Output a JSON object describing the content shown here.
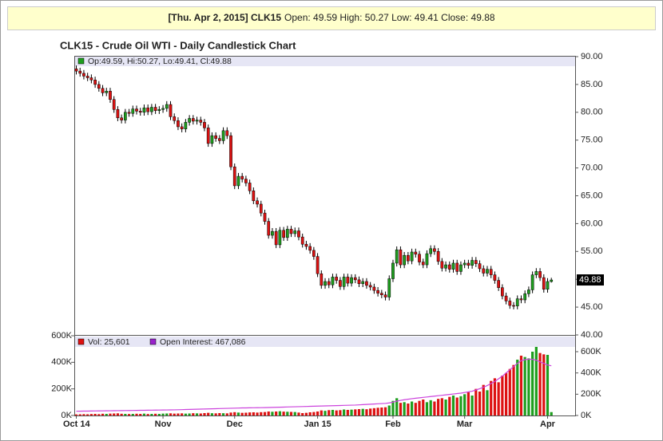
{
  "chart_data": {
    "type": "candlestick",
    "info_bar": {
      "bold": "[Thu. Apr 2, 2015] CLK15",
      "rest": "Open: 49.59 High: 50.27 Low: 49.41 Close: 49.88"
    },
    "title": "CLK15 - Crude Oil WTI - Daily Candlestick Chart",
    "price_legend": "Op:49.59, Hi:50.27, Lo:49.41, Cl:49.88",
    "last_label": "49.88",
    "up_color": "#1e9e1e",
    "down_color": "#dd1111",
    "categories": [
      "Oct 14",
      null,
      null,
      null,
      null,
      null,
      null,
      null,
      null,
      null,
      null,
      null,
      null,
      null,
      null,
      null,
      null,
      null,
      null,
      null,
      null,
      null,
      null,
      "Nov",
      null,
      null,
      null,
      null,
      null,
      null,
      null,
      null,
      null,
      null,
      null,
      null,
      null,
      null,
      null,
      null,
      null,
      null,
      "Dec",
      null,
      null,
      null,
      null,
      null,
      null,
      null,
      null,
      null,
      null,
      null,
      null,
      null,
      null,
      null,
      null,
      null,
      null,
      null,
      null,
      null,
      "Jan 15",
      null,
      null,
      null,
      null,
      null,
      null,
      null,
      null,
      null,
      null,
      null,
      null,
      null,
      null,
      null,
      null,
      null,
      null,
      null,
      "Feb",
      null,
      null,
      null,
      null,
      null,
      null,
      null,
      null,
      null,
      null,
      null,
      null,
      null,
      null,
      null,
      null,
      null,
      null,
      "Mar",
      null,
      null,
      null,
      null,
      null,
      null,
      null,
      null,
      null,
      null,
      null,
      null,
      null,
      null,
      null,
      null,
      null,
      null,
      null,
      null,
      null,
      "Apr",
      null
    ],
    "open": [
      87.8,
      87.4,
      87.0,
      86.5,
      86.2,
      85.8,
      85.0,
      84.3,
      83.5,
      83.8,
      82.3,
      80.5,
      79.0,
      78.6,
      80.0,
      79.8,
      80.6,
      80.2,
      80.0,
      80.8,
      80.1,
      80.9,
      80.3,
      80.5,
      80.7,
      81.4,
      79.2,
      78.5,
      77.4,
      77.0,
      78.2,
      78.9,
      78.4,
      78.6,
      78.2,
      77.2,
      74.4,
      75.8,
      75.3,
      74.9,
      76.7,
      75.8,
      70.2,
      66.8,
      68.5,
      68.0,
      67.3,
      65.9,
      64.1,
      63.5,
      61.9,
      60.4,
      57.9,
      58.6,
      56.2,
      58.8,
      57.5,
      59.0,
      58.2,
      58.7,
      57.6,
      56.3,
      55.9,
      55.2,
      54.1,
      51.0,
      48.9,
      49.6,
      49.0,
      50.4,
      49.8,
      48.7,
      50.4,
      49.3,
      50.3,
      49.9,
      49.2,
      49.6,
      48.9,
      48.6,
      48.0,
      47.5,
      47.2,
      46.8,
      50.1,
      52.9,
      55.3,
      52.6,
      54.3,
      53.3,
      54.9,
      54.5,
      53.1,
      52.6,
      54.6,
      55.5,
      55.0,
      53.2,
      52.0,
      52.6,
      51.8,
      52.9,
      51.4,
      52.6,
      52.9,
      52.5,
      53.4,
      52.8,
      51.9,
      51.1,
      51.8,
      50.8,
      49.8,
      48.5,
      47.0,
      46.1,
      45.3,
      45.2,
      46.5,
      46.3,
      47.4,
      48.1,
      50.8,
      51.4,
      50.3,
      48.2,
      49.59
    ],
    "high": [
      88.4,
      88.0,
      87.6,
      87.1,
      86.8,
      86.4,
      85.6,
      84.9,
      84.4,
      84.4,
      82.9,
      81.1,
      79.6,
      80.6,
      80.6,
      81.2,
      81.2,
      80.8,
      81.4,
      81.4,
      81.5,
      81.5,
      81.1,
      81.3,
      82.0,
      82.0,
      79.8,
      79.1,
      78.0,
      78.8,
      79.5,
      79.5,
      79.2,
      79.2,
      78.8,
      77.8,
      76.4,
      76.4,
      75.9,
      77.3,
      77.3,
      76.4,
      70.8,
      69.1,
      69.1,
      68.6,
      67.9,
      66.5,
      64.7,
      64.1,
      62.5,
      61.0,
      59.2,
      59.2,
      59.4,
      59.4,
      59.6,
      59.6,
      59.3,
      59.3,
      58.2,
      56.9,
      56.5,
      55.8,
      54.7,
      51.6,
      50.2,
      50.2,
      51.0,
      51.0,
      50.4,
      51.0,
      51.0,
      50.9,
      50.9,
      50.5,
      50.2,
      50.2,
      49.5,
      49.2,
      48.6,
      48.1,
      47.8,
      50.7,
      53.5,
      55.9,
      55.9,
      54.9,
      54.9,
      55.5,
      55.5,
      55.1,
      53.7,
      55.2,
      56.1,
      56.1,
      55.6,
      53.8,
      53.2,
      53.2,
      53.5,
      53.5,
      53.2,
      53.5,
      53.5,
      54.0,
      54.0,
      53.4,
      52.5,
      52.4,
      52.4,
      51.4,
      50.4,
      49.1,
      47.6,
      46.7,
      45.9,
      47.1,
      47.1,
      48.0,
      48.7,
      51.4,
      52.0,
      52.0,
      50.9,
      50.2,
      50.27
    ],
    "low": [
      86.8,
      86.4,
      85.9,
      85.6,
      85.2,
      84.4,
      83.7,
      82.9,
      82.9,
      81.7,
      79.9,
      78.4,
      78.0,
      78.0,
      79.2,
      79.2,
      79.6,
      79.4,
      79.4,
      79.5,
      79.5,
      79.7,
      79.7,
      79.9,
      80.1,
      78.6,
      77.9,
      76.8,
      76.4,
      76.4,
      77.6,
      77.8,
      77.8,
      77.6,
      76.6,
      73.8,
      73.8,
      74.7,
      74.3,
      74.3,
      75.2,
      69.6,
      66.2,
      66.2,
      67.4,
      66.7,
      65.3,
      63.5,
      62.9,
      61.3,
      59.8,
      57.3,
      57.3,
      55.6,
      55.6,
      56.9,
      56.9,
      57.6,
      57.6,
      57.0,
      55.7,
      55.3,
      54.6,
      53.5,
      50.4,
      48.3,
      48.3,
      48.4,
      48.4,
      49.2,
      48.1,
      48.1,
      48.7,
      48.7,
      49.3,
      48.6,
      48.6,
      48.3,
      48.0,
      47.4,
      46.9,
      46.6,
      46.2,
      46.2,
      49.5,
      52.3,
      52.0,
      52.0,
      52.7,
      52.7,
      53.9,
      52.5,
      52.0,
      52.0,
      54.0,
      54.4,
      52.6,
      51.4,
      51.4,
      51.2,
      51.2,
      50.8,
      50.8,
      52.0,
      51.9,
      51.9,
      52.2,
      51.3,
      50.5,
      50.5,
      50.2,
      49.2,
      47.9,
      46.4,
      45.5,
      44.7,
      44.6,
      44.6,
      45.7,
      45.7,
      46.8,
      47.5,
      50.2,
      49.7,
      47.6,
      47.6,
      49.41
    ],
    "close": [
      87.4,
      87.0,
      86.5,
      86.2,
      85.8,
      85.0,
      84.3,
      83.5,
      83.8,
      82.3,
      80.5,
      79.0,
      78.6,
      80.0,
      79.8,
      80.6,
      80.2,
      80.0,
      80.8,
      80.1,
      80.9,
      80.3,
      80.5,
      80.7,
      81.4,
      79.2,
      78.5,
      77.4,
      77.0,
      78.2,
      78.9,
      78.4,
      78.6,
      78.2,
      77.2,
      74.4,
      75.8,
      75.3,
      74.9,
      76.7,
      75.8,
      70.2,
      66.8,
      68.5,
      68.0,
      67.3,
      65.9,
      64.1,
      63.5,
      61.9,
      60.4,
      57.9,
      58.6,
      56.2,
      58.8,
      57.5,
      59.0,
      58.2,
      58.7,
      57.6,
      56.3,
      55.9,
      55.2,
      54.1,
      51.0,
      48.9,
      49.6,
      49.0,
      50.4,
      49.8,
      48.7,
      50.4,
      49.3,
      50.3,
      49.9,
      49.2,
      49.6,
      48.9,
      48.6,
      48.0,
      47.5,
      47.2,
      46.8,
      50.1,
      52.9,
      55.3,
      52.6,
      54.3,
      53.3,
      54.9,
      54.5,
      53.1,
      52.6,
      54.6,
      55.5,
      55.0,
      53.2,
      52.0,
      52.6,
      51.8,
      52.9,
      51.4,
      52.6,
      52.9,
      52.5,
      53.4,
      52.8,
      51.9,
      51.1,
      51.8,
      50.8,
      49.8,
      48.5,
      47.0,
      46.1,
      45.3,
      45.2,
      46.5,
      46.3,
      47.4,
      48.1,
      50.8,
      51.4,
      50.3,
      48.2,
      49.6,
      49.88
    ],
    "ylim": [
      40,
      90
    ],
    "yticks": [
      {
        "value": 40,
        "label": "40.00"
      },
      {
        "value": 45,
        "label": "45.00"
      },
      {
        "value": 50,
        "label": "50.00"
      },
      {
        "value": 55,
        "label": "55.00"
      },
      {
        "value": 60,
        "label": "60.00"
      },
      {
        "value": 65,
        "label": "65.00"
      },
      {
        "value": 70,
        "label": "70.00"
      },
      {
        "value": 75,
        "label": "75.00"
      },
      {
        "value": 80,
        "label": "80.00"
      },
      {
        "value": 85,
        "label": "85.00"
      },
      {
        "value": 90,
        "label": "90.00"
      }
    ],
    "volume_legend": "Vol: 25,601",
    "oi_legend": "Open Interest: 467,086",
    "volume_legend_color": "#dd1111",
    "oi_color": "#cc44dd",
    "oi_legend_color": "#9922cc",
    "volume": [
      8000,
      9000,
      10000,
      9000,
      11000,
      12000,
      10000,
      13000,
      12000,
      14000,
      15000,
      16000,
      13000,
      12000,
      11000,
      12000,
      13000,
      12000,
      14000,
      11000,
      12000,
      13000,
      12000,
      14000,
      15000,
      16000,
      14000,
      15000,
      16000,
      14000,
      15000,
      17000,
      16000,
      15000,
      18000,
      20000,
      17000,
      16000,
      18000,
      17000,
      16000,
      22000,
      25000,
      22000,
      20000,
      21000,
      23000,
      24000,
      22000,
      25000,
      26000,
      30000,
      28000,
      30000,
      32000,
      29000,
      28000,
      27000,
      26000,
      22000,
      18000,
      20000,
      24000,
      26000,
      30000,
      38000,
      35000,
      40000,
      42000,
      38000,
      40000,
      45000,
      42000,
      44000,
      46000,
      48000,
      50000,
      47000,
      52000,
      55000,
      58000,
      60000,
      62000,
      75000,
      110000,
      130000,
      95000,
      100000,
      90000,
      105000,
      95000,
      110000,
      120000,
      100000,
      115000,
      105000,
      125000,
      130000,
      120000,
      140000,
      150000,
      135000,
      145000,
      160000,
      175000,
      150000,
      200000,
      180000,
      230000,
      190000,
      260000,
      280000,
      250000,
      300000,
      320000,
      350000,
      380000,
      420000,
      450000,
      440000,
      430000,
      480000,
      516000,
      470000,
      460000,
      456000,
      25601
    ],
    "open_interest": [
      40000,
      40500,
      41000,
      41500,
      42000,
      42500,
      43000,
      43500,
      44000,
      44500,
      45000,
      45500,
      46000,
      46500,
      47000,
      47500,
      48000,
      48500,
      49000,
      49500,
      50000,
      50500,
      51000,
      51500,
      52000,
      52500,
      53000,
      54000,
      55000,
      56000,
      57000,
      58000,
      59000,
      60000,
      61000,
      62000,
      63000,
      64000,
      65000,
      66000,
      67000,
      68000,
      69000,
      70000,
      71000,
      71500,
      72000,
      72500,
      73000,
      73500,
      74000,
      75000,
      76000,
      77000,
      78000,
      79000,
      80000,
      81000,
      82000,
      83000,
      84000,
      85000,
      86000,
      87000,
      88000,
      89000,
      90000,
      91000,
      92000,
      93000,
      94000,
      95000,
      96000,
      97000,
      98000,
      100000,
      102000,
      104000,
      106000,
      108000,
      110000,
      112000,
      114000,
      118000,
      125000,
      135000,
      142000,
      148000,
      153000,
      158000,
      162000,
      166000,
      170000,
      174000,
      178000,
      182000,
      186000,
      190000,
      194000,
      198000,
      202000,
      206000,
      210000,
      216000,
      222000,
      228000,
      240000,
      252000,
      266000,
      282000,
      300000,
      320000,
      345000,
      370000,
      400000,
      430000,
      460000,
      490000,
      515000,
      525000,
      530000,
      528000,
      520000,
      505000,
      490000,
      475000,
      467086
    ],
    "vlim": [
      0,
      600000
    ],
    "vticks": [
      {
        "value": 0,
        "label": "0K"
      },
      {
        "value": 200000,
        "label": "200K"
      },
      {
        "value": 400000,
        "label": "400K"
      },
      {
        "value": 600000,
        "label": "600K"
      }
    ],
    "y2lim": [
      0,
      750000
    ],
    "y2ticks": [
      {
        "value": 0,
        "label": "0K"
      },
      {
        "value": 200000,
        "label": "200K"
      },
      {
        "value": 400000,
        "label": "400K"
      },
      {
        "value": 600000,
        "label": "600K"
      }
    ]
  }
}
